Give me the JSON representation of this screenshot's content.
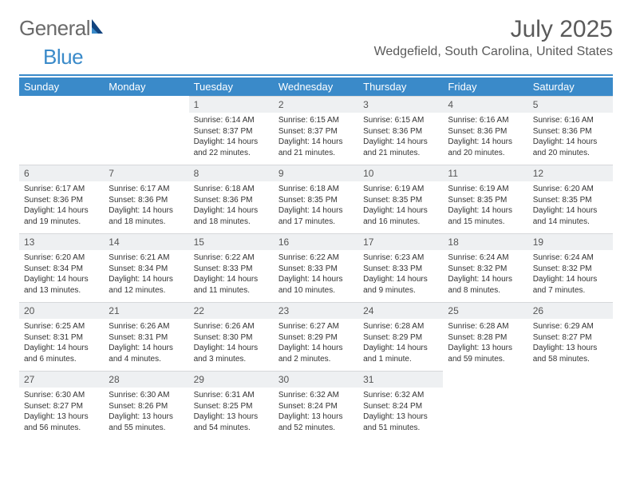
{
  "logo": {
    "text1": "General",
    "text2": "Blue"
  },
  "header": {
    "month_title": "July 2025",
    "location": "Wedgefield, South Carolina, United States"
  },
  "colors": {
    "brand_blue": "#3a8ac9",
    "header_bg": "#3a8ac9",
    "header_text": "#ffffff",
    "daynum_bg": "#eef0f2",
    "body_bg": "#ffffff",
    "text_dark": "#333333",
    "text_mid": "#5a5a5a",
    "rule": "#3a8ac9"
  },
  "day_labels": [
    "Sunday",
    "Monday",
    "Tuesday",
    "Wednesday",
    "Thursday",
    "Friday",
    "Saturday"
  ],
  "weeks": [
    [
      null,
      null,
      {
        "n": "1",
        "sunrise": "Sunrise: 6:14 AM",
        "sunset": "Sunset: 8:37 PM",
        "daylight": "Daylight: 14 hours and 22 minutes."
      },
      {
        "n": "2",
        "sunrise": "Sunrise: 6:15 AM",
        "sunset": "Sunset: 8:37 PM",
        "daylight": "Daylight: 14 hours and 21 minutes."
      },
      {
        "n": "3",
        "sunrise": "Sunrise: 6:15 AM",
        "sunset": "Sunset: 8:36 PM",
        "daylight": "Daylight: 14 hours and 21 minutes."
      },
      {
        "n": "4",
        "sunrise": "Sunrise: 6:16 AM",
        "sunset": "Sunset: 8:36 PM",
        "daylight": "Daylight: 14 hours and 20 minutes."
      },
      {
        "n": "5",
        "sunrise": "Sunrise: 6:16 AM",
        "sunset": "Sunset: 8:36 PM",
        "daylight": "Daylight: 14 hours and 20 minutes."
      }
    ],
    [
      {
        "n": "6",
        "sunrise": "Sunrise: 6:17 AM",
        "sunset": "Sunset: 8:36 PM",
        "daylight": "Daylight: 14 hours and 19 minutes."
      },
      {
        "n": "7",
        "sunrise": "Sunrise: 6:17 AM",
        "sunset": "Sunset: 8:36 PM",
        "daylight": "Daylight: 14 hours and 18 minutes."
      },
      {
        "n": "8",
        "sunrise": "Sunrise: 6:18 AM",
        "sunset": "Sunset: 8:36 PM",
        "daylight": "Daylight: 14 hours and 18 minutes."
      },
      {
        "n": "9",
        "sunrise": "Sunrise: 6:18 AM",
        "sunset": "Sunset: 8:35 PM",
        "daylight": "Daylight: 14 hours and 17 minutes."
      },
      {
        "n": "10",
        "sunrise": "Sunrise: 6:19 AM",
        "sunset": "Sunset: 8:35 PM",
        "daylight": "Daylight: 14 hours and 16 minutes."
      },
      {
        "n": "11",
        "sunrise": "Sunrise: 6:19 AM",
        "sunset": "Sunset: 8:35 PM",
        "daylight": "Daylight: 14 hours and 15 minutes."
      },
      {
        "n": "12",
        "sunrise": "Sunrise: 6:20 AM",
        "sunset": "Sunset: 8:35 PM",
        "daylight": "Daylight: 14 hours and 14 minutes."
      }
    ],
    [
      {
        "n": "13",
        "sunrise": "Sunrise: 6:20 AM",
        "sunset": "Sunset: 8:34 PM",
        "daylight": "Daylight: 14 hours and 13 minutes."
      },
      {
        "n": "14",
        "sunrise": "Sunrise: 6:21 AM",
        "sunset": "Sunset: 8:34 PM",
        "daylight": "Daylight: 14 hours and 12 minutes."
      },
      {
        "n": "15",
        "sunrise": "Sunrise: 6:22 AM",
        "sunset": "Sunset: 8:33 PM",
        "daylight": "Daylight: 14 hours and 11 minutes."
      },
      {
        "n": "16",
        "sunrise": "Sunrise: 6:22 AM",
        "sunset": "Sunset: 8:33 PM",
        "daylight": "Daylight: 14 hours and 10 minutes."
      },
      {
        "n": "17",
        "sunrise": "Sunrise: 6:23 AM",
        "sunset": "Sunset: 8:33 PM",
        "daylight": "Daylight: 14 hours and 9 minutes."
      },
      {
        "n": "18",
        "sunrise": "Sunrise: 6:24 AM",
        "sunset": "Sunset: 8:32 PM",
        "daylight": "Daylight: 14 hours and 8 minutes."
      },
      {
        "n": "19",
        "sunrise": "Sunrise: 6:24 AM",
        "sunset": "Sunset: 8:32 PM",
        "daylight": "Daylight: 14 hours and 7 minutes."
      }
    ],
    [
      {
        "n": "20",
        "sunrise": "Sunrise: 6:25 AM",
        "sunset": "Sunset: 8:31 PM",
        "daylight": "Daylight: 14 hours and 6 minutes."
      },
      {
        "n": "21",
        "sunrise": "Sunrise: 6:26 AM",
        "sunset": "Sunset: 8:31 PM",
        "daylight": "Daylight: 14 hours and 4 minutes."
      },
      {
        "n": "22",
        "sunrise": "Sunrise: 6:26 AM",
        "sunset": "Sunset: 8:30 PM",
        "daylight": "Daylight: 14 hours and 3 minutes."
      },
      {
        "n": "23",
        "sunrise": "Sunrise: 6:27 AM",
        "sunset": "Sunset: 8:29 PM",
        "daylight": "Daylight: 14 hours and 2 minutes."
      },
      {
        "n": "24",
        "sunrise": "Sunrise: 6:28 AM",
        "sunset": "Sunset: 8:29 PM",
        "daylight": "Daylight: 14 hours and 1 minute."
      },
      {
        "n": "25",
        "sunrise": "Sunrise: 6:28 AM",
        "sunset": "Sunset: 8:28 PM",
        "daylight": "Daylight: 13 hours and 59 minutes."
      },
      {
        "n": "26",
        "sunrise": "Sunrise: 6:29 AM",
        "sunset": "Sunset: 8:27 PM",
        "daylight": "Daylight: 13 hours and 58 minutes."
      }
    ],
    [
      {
        "n": "27",
        "sunrise": "Sunrise: 6:30 AM",
        "sunset": "Sunset: 8:27 PM",
        "daylight": "Daylight: 13 hours and 56 minutes."
      },
      {
        "n": "28",
        "sunrise": "Sunrise: 6:30 AM",
        "sunset": "Sunset: 8:26 PM",
        "daylight": "Daylight: 13 hours and 55 minutes."
      },
      {
        "n": "29",
        "sunrise": "Sunrise: 6:31 AM",
        "sunset": "Sunset: 8:25 PM",
        "daylight": "Daylight: 13 hours and 54 minutes."
      },
      {
        "n": "30",
        "sunrise": "Sunrise: 6:32 AM",
        "sunset": "Sunset: 8:24 PM",
        "daylight": "Daylight: 13 hours and 52 minutes."
      },
      {
        "n": "31",
        "sunrise": "Sunrise: 6:32 AM",
        "sunset": "Sunset: 8:24 PM",
        "daylight": "Daylight: 13 hours and 51 minutes."
      },
      null,
      null
    ]
  ]
}
